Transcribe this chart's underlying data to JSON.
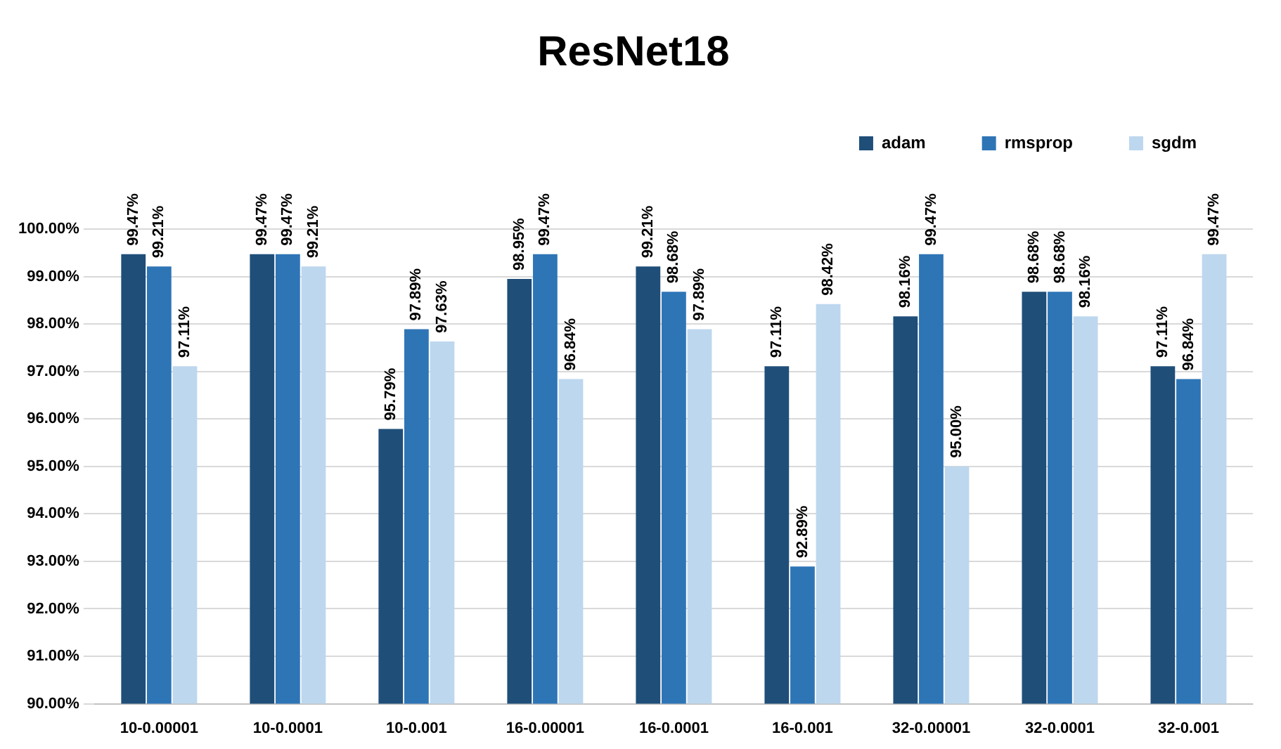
{
  "chart_data": {
    "type": "bar",
    "title": "ResNet18",
    "categories": [
      "10-0.00001",
      "10-0.0001",
      "10-0.001",
      "16-0.00001",
      "16-0.0001",
      "16-0.001",
      "32-0.00001",
      "32-0.0001",
      "32-0.001"
    ],
    "series": [
      {
        "name": "adam",
        "color": "#1f4e79",
        "values": [
          99.47,
          99.47,
          95.79,
          98.95,
          99.21,
          97.11,
          98.16,
          98.68,
          97.11
        ],
        "value_labels": [
          "99.47%",
          "99.47%",
          "95.79%",
          "98.95%",
          "99.21%",
          "97.11%",
          "98.16%",
          "98.68%",
          "97.11%"
        ]
      },
      {
        "name": "rmsprop",
        "color": "#2e75b6",
        "values": [
          99.21,
          99.47,
          97.89,
          99.47,
          98.68,
          92.89,
          99.47,
          98.68,
          96.84
        ],
        "value_labels": [
          "99.21%",
          "99.47%",
          "97.89%",
          "99.47%",
          "98.68%",
          "92.89%",
          "99.47%",
          "98.68%",
          "96.84%"
        ]
      },
      {
        "name": "sgdm",
        "color": "#bdd7ee",
        "values": [
          97.11,
          99.21,
          97.63,
          96.84,
          97.89,
          98.42,
          95.0,
          98.16,
          99.47
        ],
        "value_labels": [
          "97.11%",
          "99.21%",
          "97.63%",
          "96.84%",
          "97.89%",
          "98.42%",
          "95.00%",
          "98.16%",
          "99.47%"
        ]
      }
    ],
    "ylim": [
      90,
      100
    ],
    "yticks": [
      {
        "value": 90,
        "label": "90.00%"
      },
      {
        "value": 91,
        "label": "91.00%"
      },
      {
        "value": 92,
        "label": "92.00%"
      },
      {
        "value": 93,
        "label": "93.00%"
      },
      {
        "value": 94,
        "label": "94.00%"
      },
      {
        "value": 95,
        "label": "95.00%"
      },
      {
        "value": 96,
        "label": "96.00%"
      },
      {
        "value": 97,
        "label": "97.00%"
      },
      {
        "value": 98,
        "label": "98.00%"
      },
      {
        "value": 99,
        "label": "99.00%"
      },
      {
        "value": 100,
        "label": "100.00%"
      }
    ],
    "grid": "y",
    "legend": "top right"
  }
}
